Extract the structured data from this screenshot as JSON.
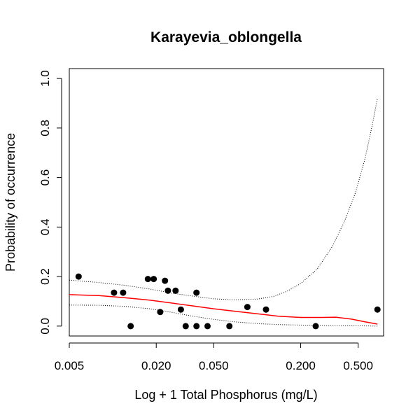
{
  "chart_data": {
    "type": "scatter",
    "title": "Karayevia_oblongella",
    "xlabel": "Log + 1 Total Phosphorus (mg/L)",
    "ylabel": "Probability of occurrence",
    "x_scale": "log",
    "xlim": [
      0.005,
      0.75
    ],
    "ylim": [
      -0.04,
      1.04
    ],
    "x_ticks": [
      0.005,
      0.02,
      0.05,
      0.2,
      0.5
    ],
    "x_tick_labels": [
      "0.005",
      "0.020",
      "0.050",
      "0.200",
      "0.500"
    ],
    "y_ticks": [
      0,
      0.2,
      0.4,
      0.6,
      0.8,
      1.0
    ],
    "y_tick_labels": [
      "0.0",
      "0.2",
      "0.4",
      "0.6",
      "0.8",
      "1.0"
    ],
    "grid": false,
    "legend": "none",
    "series": [
      {
        "kind": "points",
        "color": "#000000",
        "x": [
          0.0058,
          0.0102,
          0.0118,
          0.0133,
          0.0175,
          0.0192,
          0.0213,
          0.023,
          0.0241,
          0.0272,
          0.0296,
          0.032,
          0.038,
          0.038,
          0.0453,
          0.0642,
          0.0855,
          0.115,
          0.254,
          0.68
        ],
        "y": [
          0.2,
          0.135,
          0.135,
          0.0,
          0.19,
          0.19,
          0.057,
          0.183,
          0.143,
          0.143,
          0.067,
          0.0,
          0.0,
          0.135,
          0.0,
          0.0,
          0.077,
          0.067,
          0.0,
          0.067
        ]
      },
      {
        "kind": "line",
        "color": "#ff0000",
        "style": "solid",
        "x": [
          0.005,
          0.008,
          0.012,
          0.018,
          0.025,
          0.035,
          0.05,
          0.07,
          0.1,
          0.14,
          0.2,
          0.28,
          0.35,
          0.45,
          0.55,
          0.68
        ],
        "y": [
          0.127,
          0.123,
          0.115,
          0.105,
          0.094,
          0.082,
          0.07,
          0.06,
          0.05,
          0.04,
          0.035,
          0.035,
          0.036,
          0.028,
          0.018,
          0.008
        ]
      },
      {
        "kind": "line",
        "color": "#000000",
        "style": "dotted",
        "x": [
          0.005,
          0.008,
          0.012,
          0.018,
          0.025,
          0.035,
          0.05,
          0.07,
          0.1,
          0.13,
          0.16,
          0.2,
          0.26,
          0.33,
          0.4,
          0.48,
          0.56,
          0.63,
          0.68
        ],
        "y": [
          0.186,
          0.176,
          0.165,
          0.15,
          0.134,
          0.122,
          0.11,
          0.106,
          0.109,
          0.12,
          0.14,
          0.172,
          0.23,
          0.32,
          0.42,
          0.54,
          0.68,
          0.82,
          0.92
        ]
      },
      {
        "kind": "line",
        "color": "#000000",
        "style": "dotted",
        "x": [
          0.005,
          0.008,
          0.012,
          0.018,
          0.025,
          0.035,
          0.05,
          0.07,
          0.1,
          0.14,
          0.2,
          0.28,
          0.35,
          0.45,
          0.55,
          0.68
        ],
        "y": [
          0.085,
          0.084,
          0.08,
          0.07,
          0.057,
          0.041,
          0.027,
          0.017,
          0.01,
          0.006,
          0.004,
          0.003,
          0.002,
          0.001,
          0.001,
          0.0
        ]
      }
    ]
  }
}
